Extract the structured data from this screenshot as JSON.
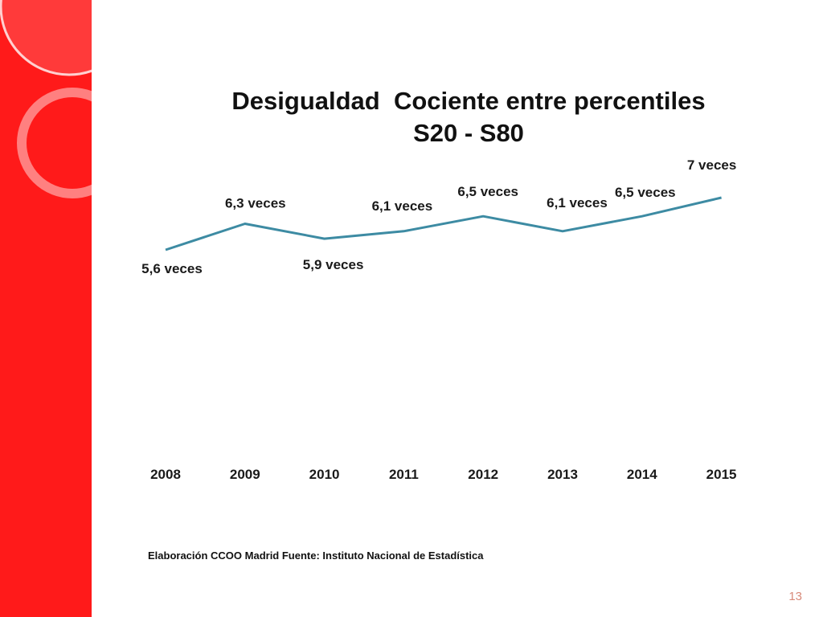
{
  "slide": {
    "number": "13",
    "source": "Elaboración CCOO Madrid Fuente: Instituto Nacional de Estadística",
    "accent_color": "#ff1a1a"
  },
  "chart_data": {
    "type": "line",
    "title_lines": [
      "Desigualdad  Cociente entre percentiles",
      "S20 - S80"
    ],
    "categories": [
      "2008",
      "2009",
      "2010",
      "2011",
      "2012",
      "2013",
      "2014",
      "2015"
    ],
    "series": [
      {
        "values": [
          5.6,
          6.3,
          5.9,
          6.1,
          6.5,
          6.1,
          6.5,
          7.0
        ],
        "data_labels": [
          "5,6 veces",
          "6,3 veces",
          "5,9 veces",
          "6,1 veces",
          "6,5 veces",
          "6,1 veces",
          "6,5 veces",
          "7 veces"
        ],
        "color": "#3d8ba3"
      }
    ],
    "xlabel": "",
    "ylabel": "",
    "grid": false,
    "legend": "none"
  }
}
